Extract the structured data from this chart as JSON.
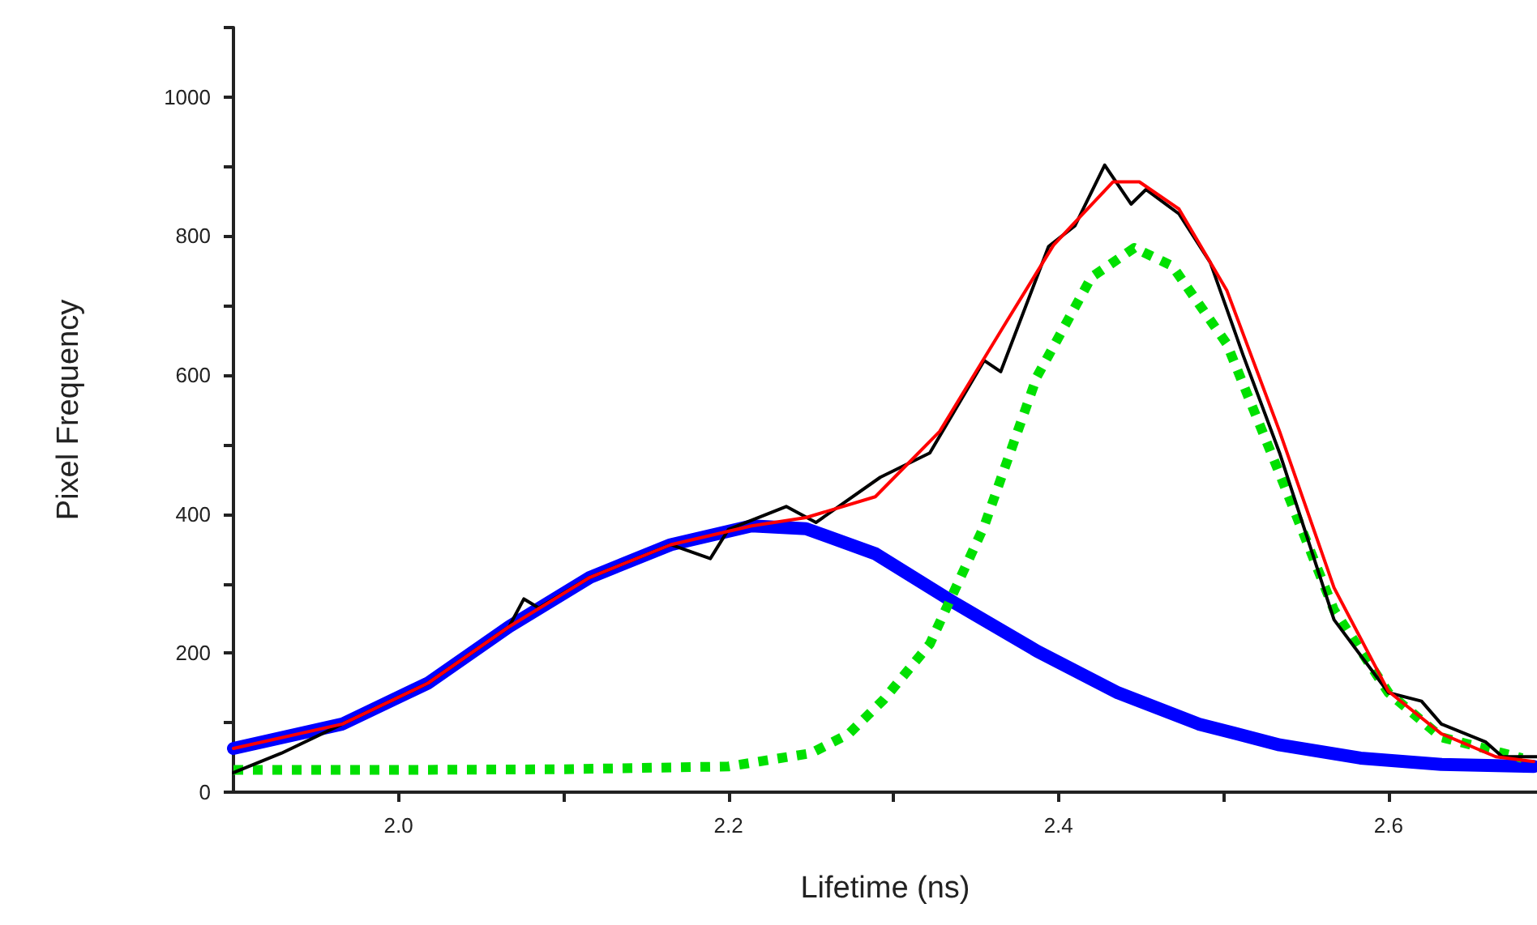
{
  "chart_data": {
    "type": "line",
    "xlabel": "Lifetime (ns)",
    "ylabel": "Pixel Frequency",
    "xlim": [
      1.9,
      2.69
    ],
    "ylim": [
      0,
      1100
    ],
    "xticks": [
      {
        "value": 2.0,
        "label": "2.0"
      },
      {
        "value": 2.1,
        "label": null
      },
      {
        "value": 2.2,
        "label": "2.2"
      },
      {
        "value": 2.3,
        "label": null
      },
      {
        "value": 2.4,
        "label": "2.4"
      },
      {
        "value": 2.5,
        "label": null
      },
      {
        "value": 2.6,
        "label": "2.6"
      }
    ],
    "yticks": [
      0,
      {
        "value": 100,
        "label": null
      },
      200,
      {
        "value": 300,
        "label": null
      },
      400,
      {
        "value": 500,
        "label": null
      },
      600,
      {
        "value": 700,
        "label": null
      },
      800,
      {
        "value": 900,
        "label": null
      },
      1000,
      {
        "value": 1100,
        "label": null
      }
    ],
    "grid": false,
    "marker": "none",
    "series": [
      {
        "color": "#0000ff",
        "line_style": "solid",
        "x": [
          1.9,
          1.966,
          2.018,
          2.067,
          2.116,
          2.165,
          2.214,
          2.247,
          2.289,
          2.338,
          2.387,
          2.436,
          2.485,
          2.534,
          2.583,
          2.632,
          2.688
        ],
        "values": [
          63,
          98,
          157,
          238,
          309,
          356,
          383,
          379,
          343,
          271,
          203,
          143,
          98,
          68,
          49,
          40,
          37
        ]
      },
      {
        "color": "#00e000",
        "line_style": "dotted",
        "x": [
          1.9,
          2.0,
          2.1,
          2.2,
          2.25,
          2.273,
          2.294,
          2.322,
          2.355,
          2.387,
          2.42,
          2.446,
          2.469,
          2.502,
          2.534,
          2.567,
          2.6,
          2.632,
          2.681
        ],
        "values": [
          32,
          32,
          33,
          37,
          56,
          84,
          133,
          213,
          383,
          598,
          741,
          783,
          757,
          645,
          458,
          262,
          143,
          79,
          49
        ]
      },
      {
        "color": "#000000",
        "line_style": "solid",
        "x": [
          1.9,
          1.929,
          1.966,
          2.018,
          2.067,
          2.076,
          2.085,
          2.116,
          2.165,
          2.189,
          2.2,
          2.235,
          2.253,
          2.292,
          2.322,
          2.355,
          2.365,
          2.394,
          2.41,
          2.428,
          2.444,
          2.453,
          2.473,
          2.492,
          2.512,
          2.534,
          2.567,
          2.6,
          2.62,
          2.632,
          2.659,
          2.669,
          2.69
        ],
        "values": [
          28,
          56,
          98,
          157,
          238,
          278,
          265,
          309,
          356,
          336,
          378,
          411,
          388,
          453,
          488,
          621,
          605,
          785,
          815,
          902,
          846,
          867,
          832,
          762,
          628,
          488,
          248,
          143,
          131,
          98,
          72,
          51,
          51
        ]
      },
      {
        "color": "#ff0000",
        "line_style": "solid",
        "x": [
          1.9,
          1.966,
          2.018,
          2.067,
          2.116,
          2.165,
          2.214,
          2.247,
          2.289,
          2.328,
          2.368,
          2.397,
          2.433,
          2.449,
          2.473,
          2.502,
          2.534,
          2.567,
          2.6,
          2.632,
          2.665,
          2.688
        ],
        "values": [
          63,
          98,
          157,
          238,
          309,
          356,
          383,
          395,
          425,
          519,
          675,
          787,
          878,
          878,
          839,
          722,
          519,
          294,
          145,
          84,
          51,
          44
        ]
      }
    ]
  }
}
